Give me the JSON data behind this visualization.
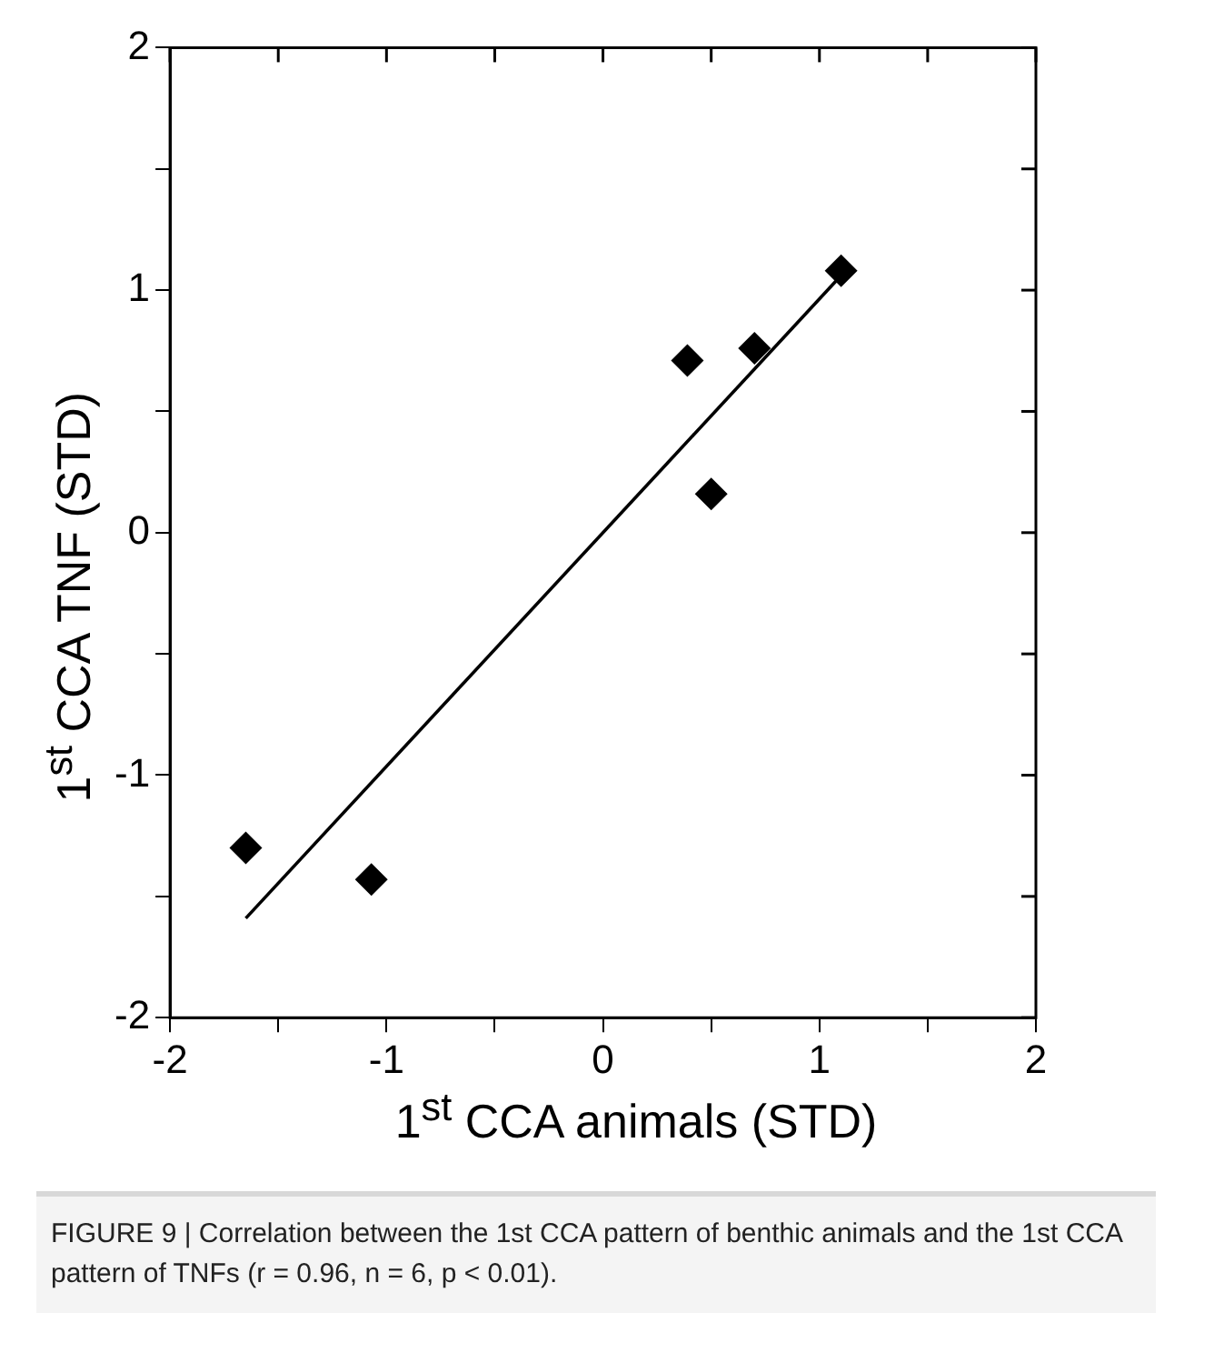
{
  "chart_data": {
    "type": "scatter",
    "xlabel": "1$^{st}$ CCA animals (STD)",
    "ylabel": "1$^{st}$ CCA TNF (STD)",
    "annotations": [
      "FIGURE 9 | Correlation between the 1st CCA pattern of benthic animals and the 1st CCA pattern of TNFs (r = 0.96, n = 6, p < 0.01)."
    ],
    "xlim": [
      -2,
      2
    ],
    "ylim": [
      -2,
      2
    ],
    "xticks": [
      -2,
      {
        "value": -1.5,
        "label": null
      },
      -1,
      {
        "value": -0.5,
        "label": null
      },
      0,
      {
        "value": 0.5,
        "label": null
      },
      1,
      {
        "value": 1.5,
        "label": null
      },
      2
    ],
    "yticks": [
      -2,
      {
        "value": -1.5,
        "label": null
      },
      -1,
      {
        "value": -0.5,
        "label": null
      },
      0,
      {
        "value": 0.5,
        "label": null
      },
      1,
      {
        "value": 1.5,
        "label": null
      },
      2
    ],
    "grid": false,
    "legend": false,
    "marker": "diamond",
    "series": [
      {
        "type": "scatter",
        "color": "#000000",
        "x": [
          -1.65,
          -1.07,
          0.39,
          0.5,
          0.7,
          1.1
        ],
        "values": [
          -1.3,
          -1.43,
          0.71,
          0.16,
          0.76,
          1.08
        ]
      },
      {
        "type": "line",
        "color": "#000000",
        "marker": "none",
        "x": [
          -1.65,
          1.1
        ],
        "values": [
          -1.59,
          1.06
        ]
      }
    ]
  }
}
